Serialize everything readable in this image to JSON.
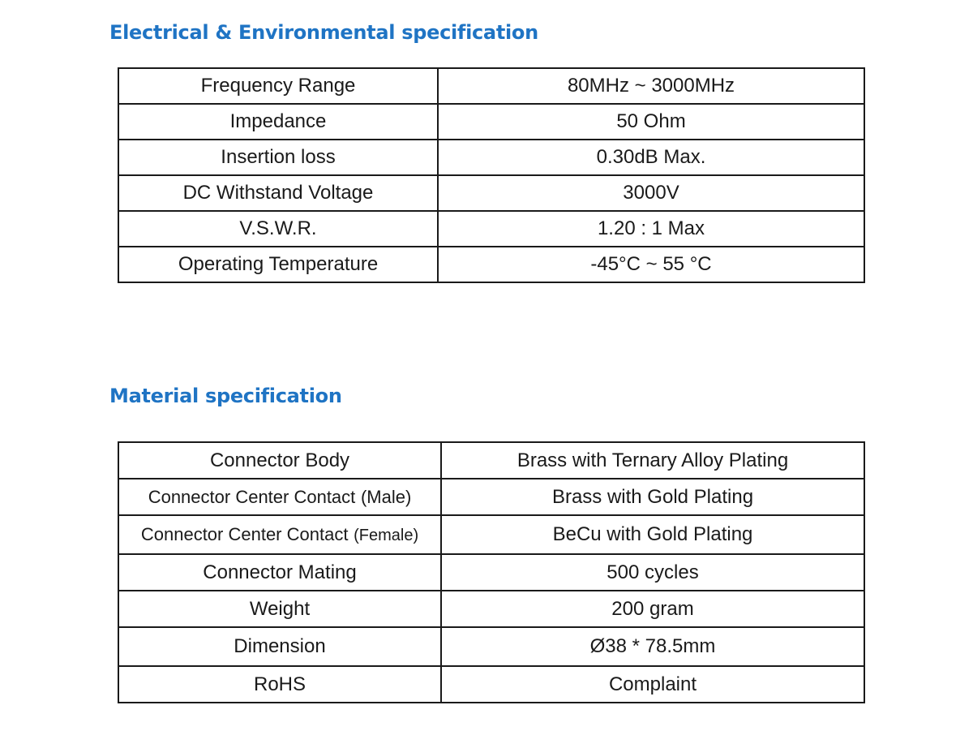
{
  "electrical": {
    "title": "Electrical & Environmental specification",
    "rows": [
      {
        "label": "Frequency Range",
        "value": "80MHz ~ 3000MHz"
      },
      {
        "label": "Impedance",
        "value": "50 Ohm"
      },
      {
        "label": "Insertion loss",
        "value": "0.30dB Max."
      },
      {
        "label": "DC Withstand Voltage",
        "value": "3000V"
      },
      {
        "label": "V.S.W.R.",
        "value": "1.20 : 1 Max"
      },
      {
        "label": "Operating Temperature",
        "value": "-45°C ~ 55 °C"
      }
    ]
  },
  "material": {
    "title": "Material specification",
    "rows": [
      {
        "label": "Connector Body",
        "value": "Brass with Ternary Alloy Plating"
      },
      {
        "label": "Connector Center Contact",
        "label_note": "(Male)",
        "value": "Brass with Gold Plating"
      },
      {
        "label": "Connector Center Contact",
        "label_note": "(Female)",
        "value": "BeCu with Gold Plating"
      },
      {
        "label": "Connector Mating",
        "value": "500 cycles"
      },
      {
        "label": "Weight",
        "value": "200 gram"
      },
      {
        "label": "Dimension",
        "value": "Ø38 * 78.5mm"
      },
      {
        "label": "RoHS",
        "value": "Complaint"
      }
    ]
  },
  "colors": {
    "title_blue": "#1f74c4",
    "border": "#1a1a1a",
    "text": "#1a1a1a"
  }
}
